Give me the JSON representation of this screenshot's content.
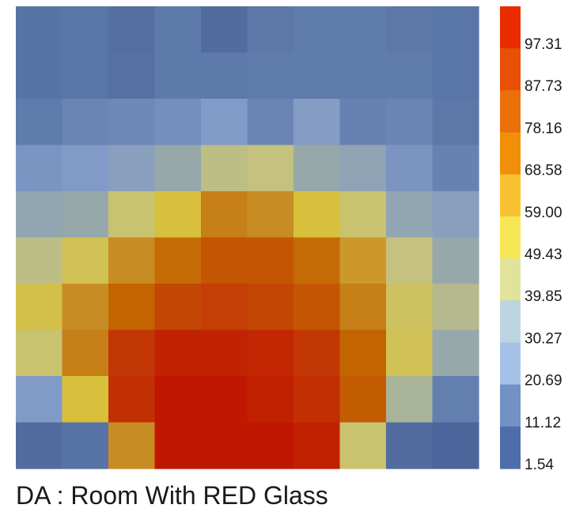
{
  "chart_data": {
    "type": "heatmap",
    "title": "DA : Room With RED Glass",
    "rows": 10,
    "cols": 10,
    "values": [
      [
        8,
        9,
        6,
        11,
        5,
        10,
        12,
        12,
        10,
        9
      ],
      [
        8,
        9,
        7,
        11,
        11,
        12,
        12,
        12,
        12,
        9
      ],
      [
        12,
        15,
        16,
        18,
        22,
        15,
        23,
        14,
        15,
        10
      ],
      [
        20,
        22,
        25,
        30,
        40,
        42,
        30,
        27,
        20,
        14
      ],
      [
        28,
        30,
        45,
        55,
        72,
        68,
        55,
        45,
        28,
        25
      ],
      [
        40,
        50,
        68,
        78,
        84,
        84,
        78,
        65,
        42,
        30
      ],
      [
        52,
        68,
        80,
        88,
        90,
        88,
        84,
        72,
        48,
        38
      ],
      [
        45,
        72,
        92,
        97,
        97,
        96,
        92,
        80,
        50,
        30
      ],
      [
        22,
        55,
        94,
        100,
        100,
        98,
        94,
        82,
        35,
        13
      ],
      [
        5,
        8,
        68,
        100,
        100,
        100,
        98,
        45,
        5,
        2
      ]
    ],
    "colorbar": {
      "ticks": [
        "97.31",
        "87.73",
        "78.16",
        "68.58",
        "59.00",
        "49.43",
        "39.85",
        "30.27",
        "20.69",
        "11.12",
        "1.54"
      ],
      "colors_top_to_bottom": [
        "#ea2b00",
        "#e85005",
        "#ec700a",
        "#f19008",
        "#f8c132",
        "#f7e655",
        "#e1e39b",
        "#bdd4e1",
        "#a6c1e8",
        "#7292c6",
        "#4e6dab"
      ]
    }
  }
}
